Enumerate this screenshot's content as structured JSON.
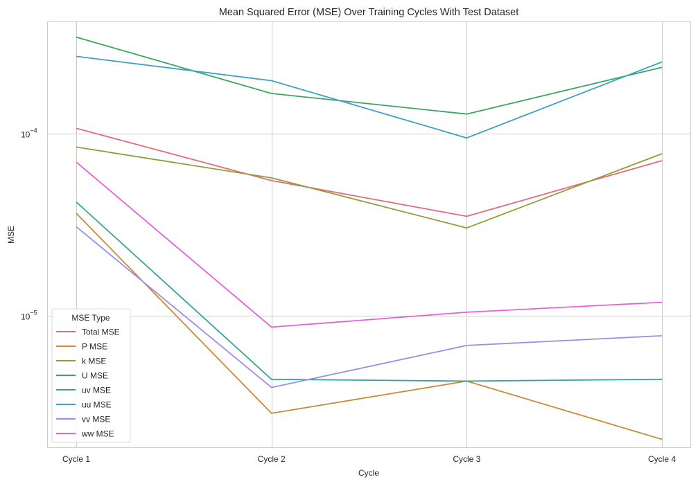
{
  "chart_data": {
    "type": "line",
    "title": "Mean Squared Error (MSE) Over Training Cycles With Test Dataset",
    "xlabel": "Cycle",
    "ylabel": "MSE",
    "categories": [
      "Cycle 1",
      "Cycle 2",
      "Cycle 3",
      "Cycle 4"
    ],
    "yscale": "log",
    "ylim": [
      1.9e-06,
      0.00041
    ],
    "yticks": [
      {
        "value": 1e-05,
        "base": "10",
        "exp": "−5"
      },
      {
        "value": 0.0001,
        "base": "10",
        "exp": "−4"
      }
    ],
    "grid": true,
    "legend": {
      "title": "MSE Type",
      "placement": "lower-left"
    },
    "series": [
      {
        "name": "Total MSE",
        "color": "#e8687f",
        "values": [
          0.000107,
          5.53e-05,
          3.52e-05,
          7.11e-05
        ]
      },
      {
        "name": "P MSE",
        "color": "#c98b35",
        "values": [
          3.66e-05,
          2.93e-06,
          4.4e-06,
          2.11e-06
        ]
      },
      {
        "name": "k MSE",
        "color": "#8f9e36",
        "values": [
          8.44e-05,
          5.72e-05,
          3.04e-05,
          7.76e-05
        ]
      },
      {
        "name": "U MSE",
        "color": "#3aa660",
        "values": [
          0.000338,
          0.000166,
          0.000128,
          0.000231
        ]
      },
      {
        "name": "uv MSE",
        "color": "#35a596",
        "values": [
          4.22e-05,
          4.5e-06,
          4.4e-06,
          4.5e-06
        ]
      },
      {
        "name": "uu MSE",
        "color": "#3aa2c3",
        "values": [
          0.000265,
          0.000195,
          9.47e-05,
          0.000247
        ]
      },
      {
        "name": "vv MSE",
        "color": "#9d8ceb",
        "values": [
          3.09e-05,
          4.06e-06,
          6.9e-06,
          7.8e-06
        ]
      },
      {
        "name": "ww MSE",
        "color": "#e860d6",
        "values": [
          6.98e-05,
          8.7e-06,
          1.05e-05,
          1.19e-05
        ]
      }
    ]
  }
}
